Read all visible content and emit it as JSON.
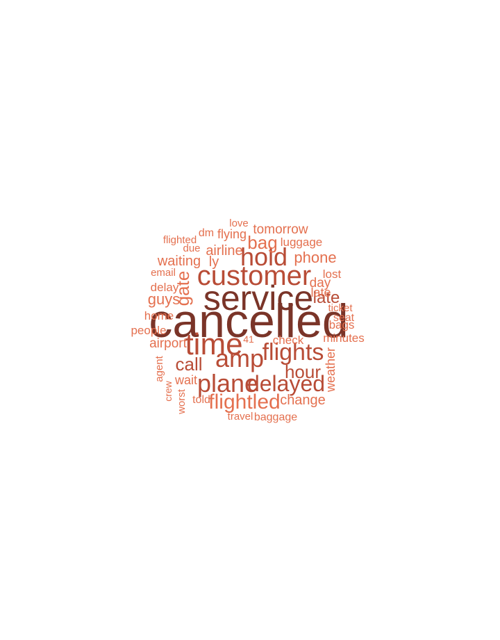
{
  "word_cloud": {
    "colors": {
      "dark": "#7a3428",
      "mid": "#b84c36",
      "light": "#e4704f"
    },
    "words": [
      {
        "text": "cancelled",
        "tone": "dark"
      },
      {
        "text": "service",
        "tone": "dark"
      },
      {
        "text": "customer",
        "tone": "mid"
      },
      {
        "text": "time",
        "tone": "mid"
      },
      {
        "text": "amp",
        "tone": "mid"
      },
      {
        "text": "flights",
        "tone": "mid"
      },
      {
        "text": "plane",
        "tone": "mid"
      },
      {
        "text": "hold",
        "tone": "mid"
      },
      {
        "text": "delayed",
        "tone": "mid"
      },
      {
        "text": "flightled",
        "tone": "light"
      },
      {
        "text": "late",
        "tone": "mid"
      },
      {
        "text": "bag",
        "tone": "light"
      },
      {
        "text": "hour",
        "tone": "mid"
      },
      {
        "text": "call",
        "tone": "mid"
      },
      {
        "text": "phone",
        "tone": "light"
      },
      {
        "text": "waiting",
        "tone": "light"
      },
      {
        "text": "airline",
        "tone": "light"
      },
      {
        "text": "guys",
        "tone": "light"
      },
      {
        "text": "ly",
        "tone": "light"
      },
      {
        "text": "gate",
        "tone": "light"
      },
      {
        "text": "late",
        "tone": "light"
      },
      {
        "text": "change",
        "tone": "light"
      },
      {
        "text": "weather",
        "tone": "light"
      },
      {
        "text": "tomorrow",
        "tone": "light"
      },
      {
        "text": "flying",
        "tone": "light"
      },
      {
        "text": "luggage",
        "tone": "light"
      },
      {
        "text": "day",
        "tone": "light"
      },
      {
        "text": "airport",
        "tone": "light"
      },
      {
        "text": "check",
        "tone": "light"
      },
      {
        "text": "minutes",
        "tone": "light"
      },
      {
        "text": "home",
        "tone": "light"
      },
      {
        "text": "delay",
        "tone": "light"
      },
      {
        "text": "people",
        "tone": "light"
      },
      {
        "text": "lost",
        "tone": "light"
      },
      {
        "text": "baggage",
        "tone": "light"
      },
      {
        "text": "wait",
        "tone": "light"
      },
      {
        "text": "bags",
        "tone": "light"
      },
      {
        "text": "seat",
        "tone": "light"
      },
      {
        "text": "ticket",
        "tone": "light"
      },
      {
        "text": "love",
        "tone": "light"
      },
      {
        "text": "dm",
        "tone": "light"
      },
      {
        "text": "flighted",
        "tone": "light"
      },
      {
        "text": "due",
        "tone": "light"
      },
      {
        "text": "email",
        "tone": "light"
      },
      {
        "text": "told",
        "tone": "light"
      },
      {
        "text": "travel",
        "tone": "light"
      },
      {
        "text": "agent",
        "tone": "light"
      },
      {
        "text": "crew",
        "tone": "light"
      },
      {
        "text": "worst",
        "tone": "light"
      },
      {
        "text": "41",
        "tone": "light"
      }
    ]
  }
}
